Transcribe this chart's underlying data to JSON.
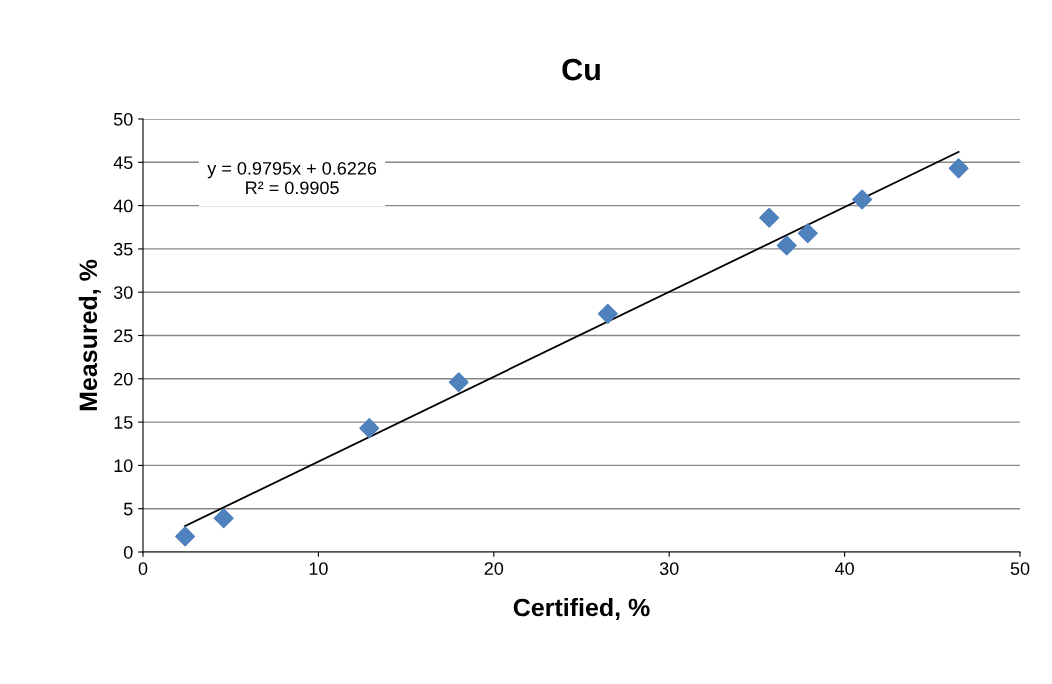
{
  "chart_data": {
    "type": "scatter",
    "title": "Cu",
    "xlabel": "Certified, %",
    "ylabel": "Measured, %",
    "x": [
      2.4,
      4.6,
      12.9,
      18.0,
      26.5,
      35.7,
      36.7,
      37.9,
      41.0,
      46.5
    ],
    "series": [
      {
        "type": "scatter",
        "color": "#4f81bd",
        "marker": "diamond",
        "values": [
          1.8,
          3.9,
          14.3,
          19.6,
          27.5,
          38.6,
          35.4,
          36.8,
          40.7,
          44.3
        ]
      },
      {
        "type": "line",
        "color": "#000000",
        "marker": "none",
        "line_style": "solid",
        "x": [
          2.4,
          46.5
        ],
        "values": [
          3.0,
          46.2
        ]
      }
    ],
    "annotations": [
      "y = 0.9795x + 0.6226\nR² = 0.9905"
    ],
    "xlim": [
      0,
      50
    ],
    "xticks": [
      0,
      10,
      20,
      30,
      40,
      50
    ],
    "ylim": [
      0,
      50
    ],
    "yticks": [
      0,
      5,
      10,
      15,
      20,
      25,
      30,
      35,
      40,
      45,
      50
    ],
    "grid": "y",
    "legend": false
  }
}
